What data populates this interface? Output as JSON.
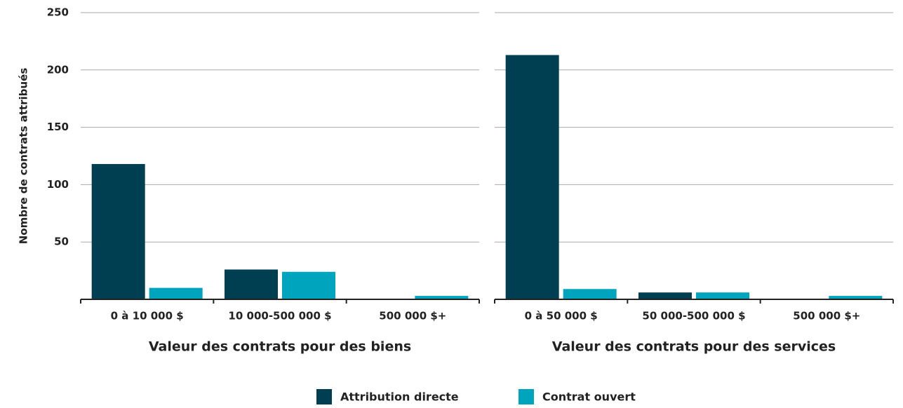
{
  "chart_data": [
    {
      "type": "bar",
      "y_label": "Nombre de contrats attribués",
      "x_label": "Valeur des contrats pour des biens",
      "categories": [
        "0 à 10 000 $",
        "10 000-500 000 $",
        "500 000 $+"
      ],
      "series": [
        {
          "name": "Attribution directe",
          "color": "#003f51",
          "values": [
            118,
            26,
            0
          ]
        },
        {
          "name": "Contrat ouvert",
          "color": "#00a5bd",
          "values": [
            10,
            24,
            3
          ]
        }
      ],
      "ylim": [
        0,
        250
      ],
      "yticks": [
        50,
        100,
        150,
        200,
        250
      ],
      "grid": true,
      "legend": "bottom"
    },
    {
      "type": "bar",
      "x_label": "Valeur des contrats pour des services",
      "categories": [
        "0 à 50 000 $",
        "50 000-500 000 $",
        "500 000 $+"
      ],
      "series": [
        {
          "name": "Attribution directe",
          "color": "#003f51",
          "values": [
            213,
            6,
            0
          ]
        },
        {
          "name": "Contrat ouvert",
          "color": "#00a5bd",
          "values": [
            9,
            6,
            3
          ]
        }
      ],
      "ylim": [
        0,
        250
      ],
      "yticks": [
        50,
        100,
        150,
        200,
        250
      ],
      "grid": true
    }
  ]
}
